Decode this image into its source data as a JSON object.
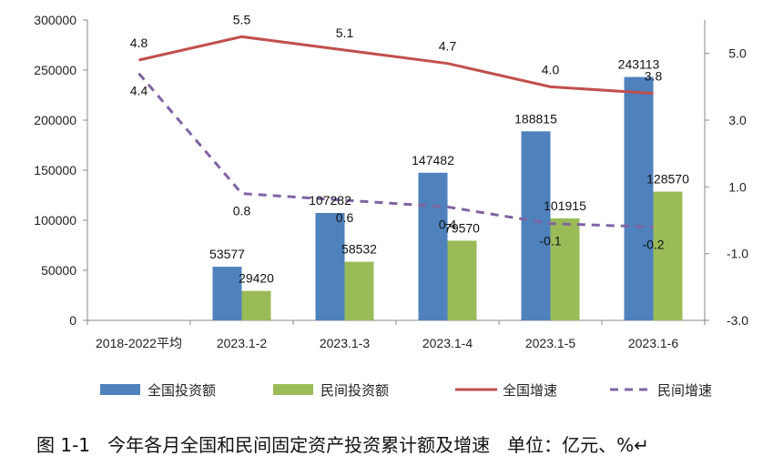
{
  "chart_data": {
    "type": "bar+line",
    "categories": [
      "2018-2022平均",
      "2023.1-2",
      "2023.1-3",
      "2023.1-4",
      "2023.1-5",
      "2023.1-6"
    ],
    "bar_series": [
      {
        "name": "全国投资额",
        "color": "#4f81bd",
        "values": [
          null,
          53577,
          107282,
          147482,
          188815,
          243113
        ]
      },
      {
        "name": "民间投资额",
        "color": "#9bbb59",
        "values": [
          null,
          29420,
          58532,
          79570,
          101915,
          128570
        ]
      }
    ],
    "line_series": [
      {
        "name": "全国增速",
        "color": "#c0504d",
        "dash": false,
        "values": [
          4.8,
          5.5,
          5.1,
          4.7,
          4.0,
          3.8
        ]
      },
      {
        "name": "民间增速",
        "color": "#8064a2",
        "dash": true,
        "values": [
          4.4,
          0.8,
          0.6,
          0.4,
          -0.1,
          -0.2
        ]
      }
    ],
    "y_left": {
      "min": 0,
      "max": 300000,
      "ticks": [
        0,
        50000,
        100000,
        150000,
        200000,
        250000,
        300000
      ]
    },
    "y_right": {
      "min": -3.0,
      "max": 6.0,
      "ticks": [
        "-3.0",
        "-1.0",
        "1.0",
        "3.0",
        "5.0"
      ],
      "tick_values": [
        -3,
        -1,
        1,
        3,
        5
      ]
    },
    "legend_position": "bottom"
  },
  "caption": "图 1-1   今年各月全国和民间固定资产投资累计额及增速   单位：亿元、%↵"
}
